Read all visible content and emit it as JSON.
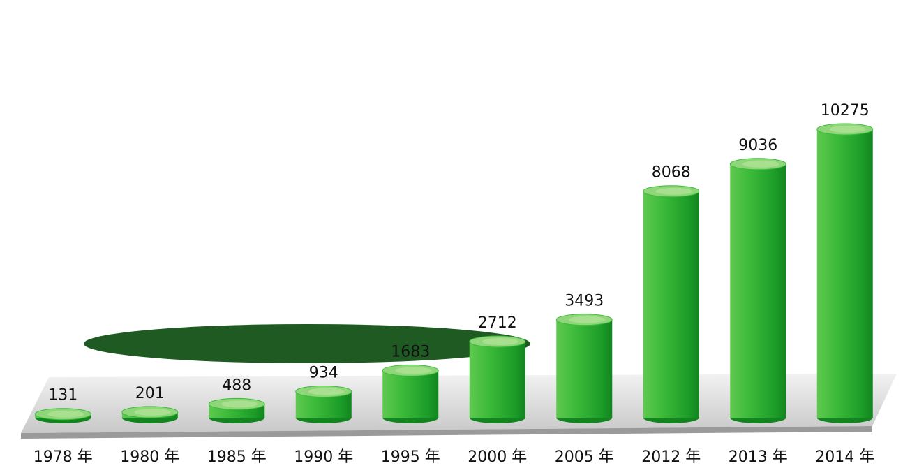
{
  "chart_data": {
    "type": "bar",
    "categories": [
      "1978 年",
      "1980 年",
      "1985 年",
      "1990 年",
      "1995 年",
      "2000 年",
      "2005 年",
      "2012 年",
      "2013 年",
      "2014 年"
    ],
    "values": [
      131,
      201,
      488,
      934,
      1683,
      2712,
      3493,
      8068,
      9036,
      10275
    ],
    "color": "#21a62c"
  }
}
